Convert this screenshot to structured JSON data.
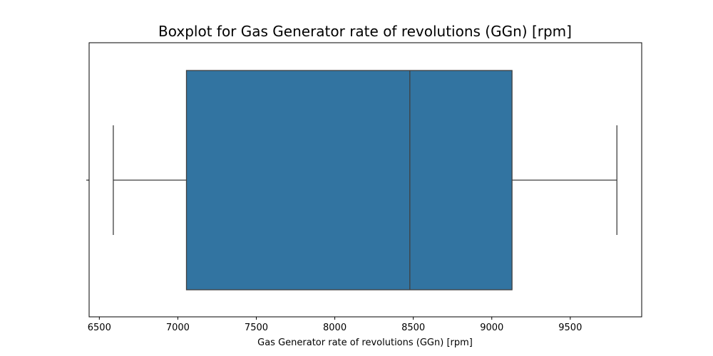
{
  "chart_data": {
    "type": "boxplot",
    "orientation": "horizontal",
    "title": "Boxplot for Gas Generator rate of revolutions (GGn) [rpm]",
    "xlabel": "Gas Generator rate of revolutions (GGn) [rpm]",
    "ylabel": "",
    "xlim": [
      6435,
      9955
    ],
    "xticks": [
      6500,
      7000,
      7500,
      8000,
      8500,
      9000,
      9500
    ],
    "xtick_labels": [
      "6500",
      "7000",
      "7500",
      "8000",
      "8500",
      "9000",
      "9500"
    ],
    "box": {
      "whisker_low": 6589,
      "q1": 7055,
      "median": 8478,
      "q3": 9129,
      "whisker_high": 9797
    },
    "outliers": [],
    "grid": false,
    "legend": "none",
    "colors": {
      "box_fill": "#3274a1",
      "lines": "#3f3f3f",
      "axes": "#000000"
    }
  }
}
